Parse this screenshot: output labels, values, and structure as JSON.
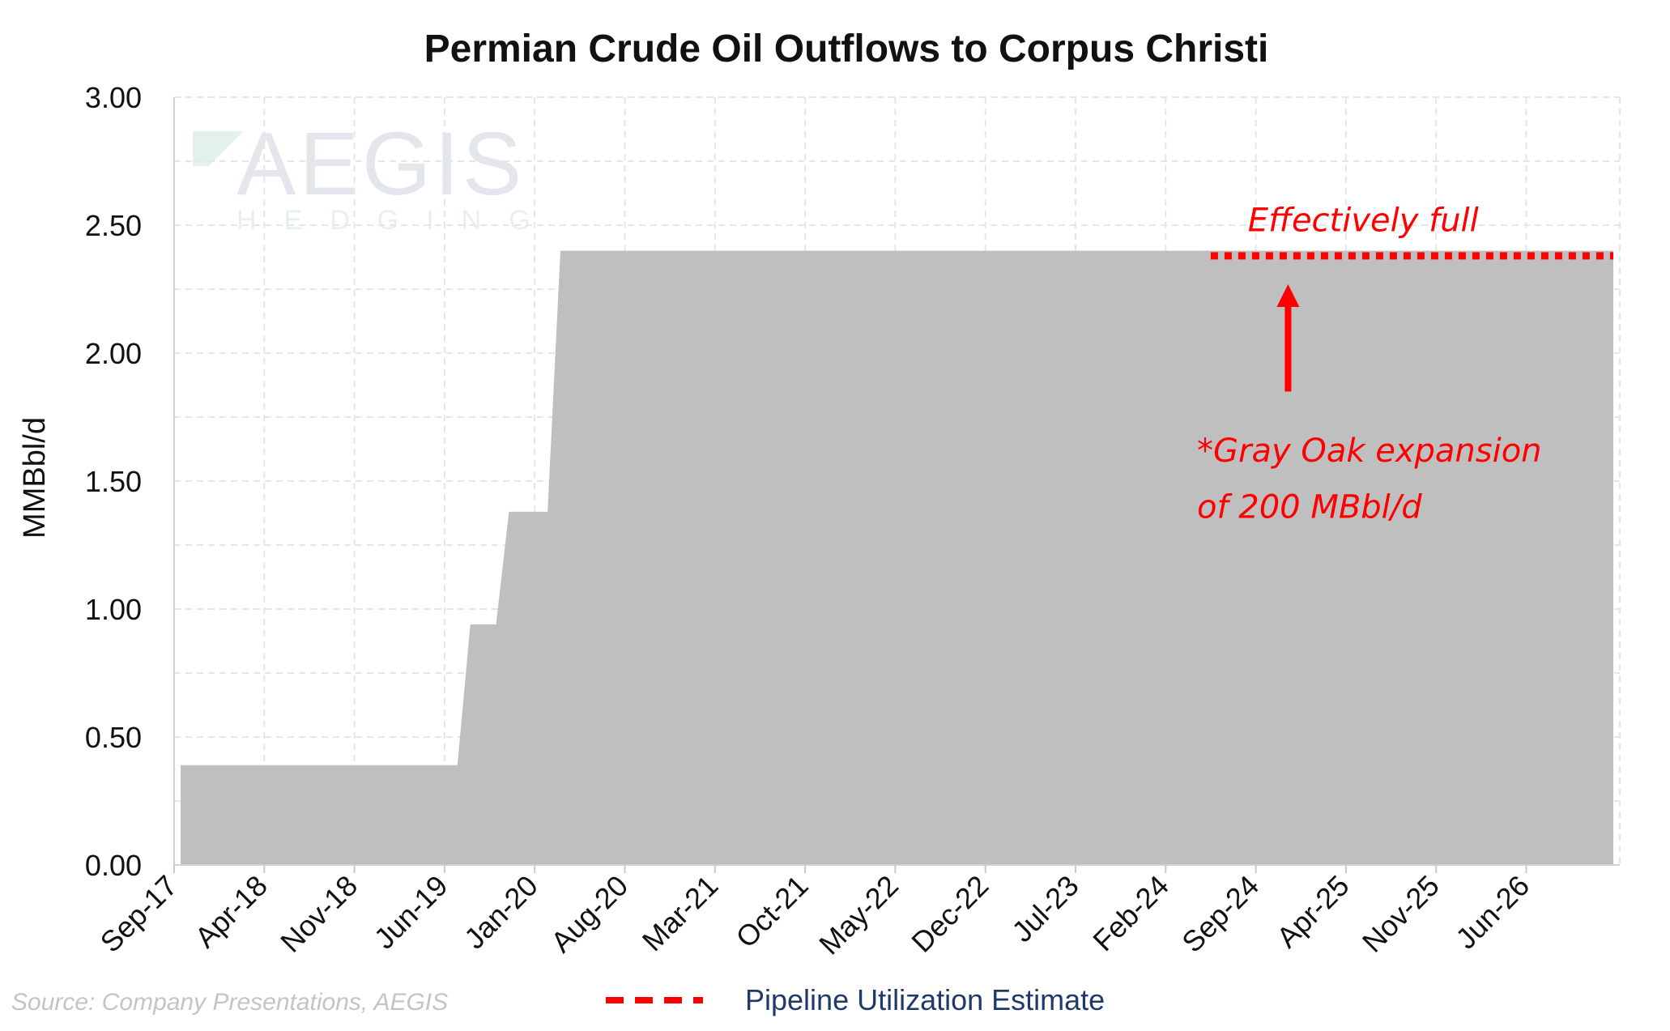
{
  "chart_data": {
    "type": "area",
    "title": "Permian Crude Oil Outflows to Corpus Christi",
    "ylabel": "MMBbl/d",
    "xlabel": "",
    "ylim": [
      0,
      3.0
    ],
    "y_ticks": [
      "0.00",
      "0.50",
      "1.00",
      "1.50",
      "2.00",
      "2.50",
      "3.00"
    ],
    "x_tick_labels": [
      "Sep-17",
      "Apr-18",
      "Nov-18",
      "Jun-19",
      "Jan-20",
      "Aug-20",
      "Mar-21",
      "Oct-21",
      "May-22",
      "Dec-22",
      "Jul-23",
      "Feb-24",
      "Sep-24",
      "Apr-25",
      "Nov-25",
      "Jun-26"
    ],
    "grid": true,
    "series": [
      {
        "kind": "area",
        "color": "#bfbfbf",
        "x": [
          "Sep-17",
          "Jul-19",
          "Oct-19",
          "Oct-19",
          "Dec-19",
          "Mar-20",
          "Feb-27"
        ],
        "values": [
          0.39,
          0.39,
          0.94,
          0.94,
          1.38,
          2.4,
          2.4
        ],
        "step_x": [
          "Sep-17",
          "Jul-19",
          "Aug-19",
          "Oct-19",
          "Nov-19",
          "Feb-20",
          "Mar-20",
          "Feb-27"
        ],
        "step_values": [
          0.39,
          0.39,
          0.94,
          0.94,
          1.38,
          1.38,
          2.4,
          2.4
        ]
      },
      {
        "name": "Pipeline Utilization Estimate",
        "kind": "dotted-line",
        "color": "#ff0000",
        "x": [
          "Jun-24",
          "Feb-27"
        ],
        "values": [
          2.38,
          2.38
        ]
      }
    ],
    "annotations": [
      {
        "text": "Effectively full",
        "x": "Jul-24",
        "y": 2.52
      },
      {
        "text": "*Gray Oak expansion",
        "x": "May-24",
        "y": 1.62
      },
      {
        "text": "of 200 MBbl/d",
        "x": "May-24",
        "y": 1.4
      }
    ],
    "arrow": {
      "x": "Nov-24",
      "y_from": 1.85,
      "y_to": 2.25,
      "color": "#ff0000"
    },
    "legend": {
      "placement": "bottom-center",
      "label": "Pipeline Utilization Estimate"
    },
    "source": "Source: Company Presentations, AEGIS",
    "watermark": {
      "main": "AEGIS",
      "sub": "HEDGING"
    }
  }
}
